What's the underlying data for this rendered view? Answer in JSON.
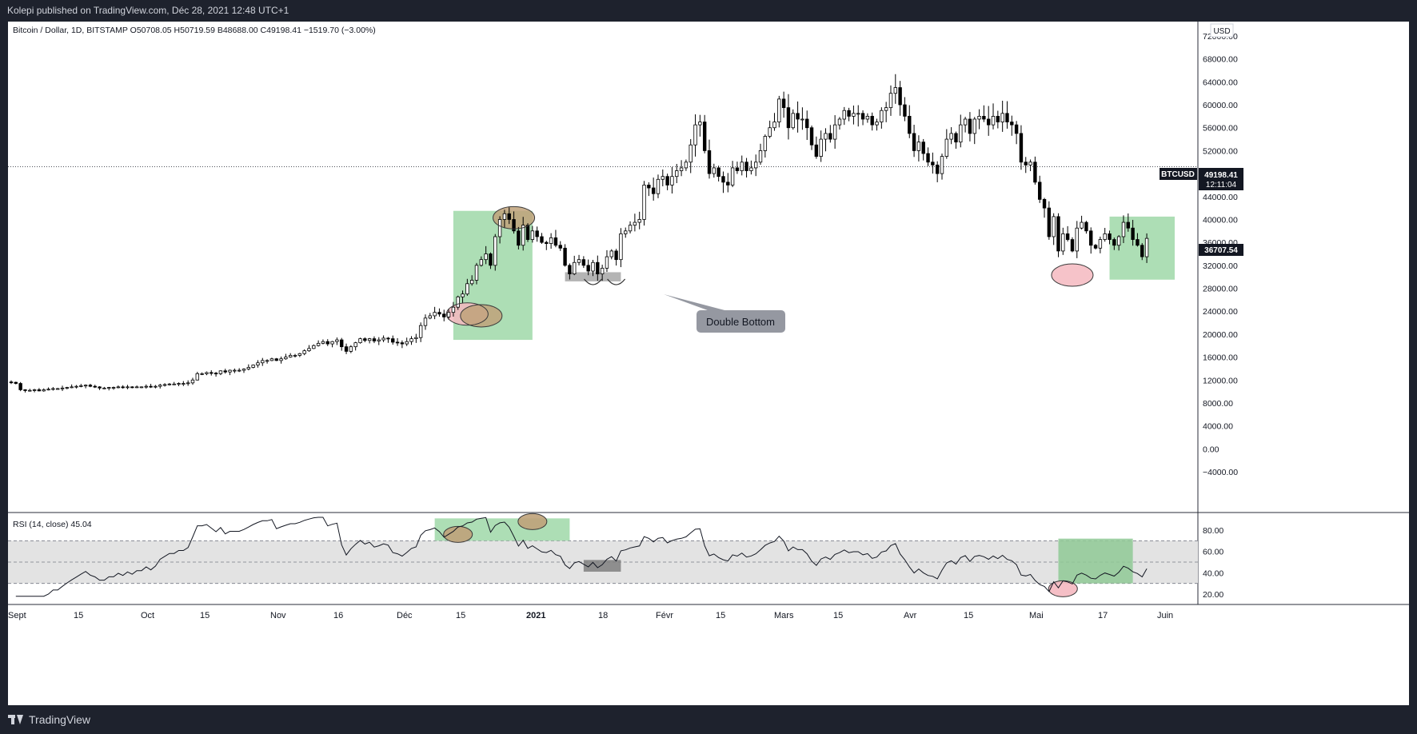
{
  "header": {
    "published": "Kolepi published on TradingView.com, Déc 28, 2021 12:48 UTC+1"
  },
  "footer": {
    "brand": "TradingView"
  },
  "colors": {
    "up": "#ffffff",
    "down": "#000000",
    "zone_green": "#9fd8a8",
    "circle_pink": "#f4b8c0",
    "circle_brown": "#bfa27a",
    "rsi_band": "#e3e3e3"
  },
  "chart_data": {
    "type": "candlestick",
    "symbol_line": "Bitcoin / Dollar, 1D, BITSTAMP  O50708.05  H50719.59  B48688.00  C49198.41  −1519.70 (−3.00%)",
    "currency": "USD",
    "price_axis_labels": [
      "72000.00",
      "68000.00",
      "64000.00",
      "60000.00",
      "56000.00",
      "52000.00",
      "48000.00",
      "44000.00",
      "40000.00",
      "36000.00",
      "32000.00",
      "28000.00",
      "24000.00",
      "20000.00",
      "16000.00",
      "12000.00",
      "8000.00",
      "4000.00",
      "0.00",
      "−4000.00"
    ],
    "ylim": [
      -6000,
      73000
    ],
    "x_axis_labels": [
      "Sept",
      "15",
      "Oct",
      "15",
      "Nov",
      "16",
      "Déc",
      "15",
      "2021",
      "18",
      "Févr",
      "15",
      "Mars",
      "15",
      "Avr",
      "15",
      "Mai",
      "17",
      "Juin"
    ],
    "last_price": {
      "label": "BTCUSD",
      "value": "49198.41",
      "countdown": "12:11:04"
    },
    "cross_price": "36707.54",
    "annotation": "Double Bottom",
    "closes": [
      11600,
      11400,
      10300,
      10200,
      10200,
      10300,
      10100,
      10300,
      10400,
      10500,
      10500,
      10600,
      10700,
      10800,
      10900,
      11000,
      11100,
      10900,
      10800,
      10600,
      10600,
      10700,
      10700,
      10800,
      10700,
      10800,
      10700,
      10800,
      10800,
      10900,
      10800,
      10900,
      11100,
      11200,
      11300,
      11300,
      11400,
      11400,
      11500,
      12000,
      13100,
      13100,
      13300,
      13200,
      13100,
      13600,
      13400,
      13700,
      13700,
      13700,
      13900,
      14200,
      14600,
      15000,
      15400,
      15400,
      15700,
      15400,
      15700,
      16000,
      16300,
      16300,
      16600,
      17100,
      17500,
      18000,
      18400,
      18700,
      18300,
      18700,
      19000,
      17800,
      17000,
      17800,
      18500,
      19200,
      18900,
      19200,
      18800,
      19000,
      19300,
      19200,
      18600,
      18500,
      18300,
      18700,
      19200,
      19400,
      21500,
      22800,
      23200,
      23800,
      23500,
      23000,
      23800,
      24700,
      26500,
      27000,
      28800,
      29400,
      32000,
      33000,
      34000,
      32000,
      37000,
      40000,
      41000,
      40000,
      38000,
      35500,
      39000,
      36500,
      38000,
      37000,
      36000,
      35800,
      36800,
      35500,
      35000,
      32000,
      30500,
      32500,
      33000,
      32000,
      31000,
      32500,
      30500,
      31500,
      33500,
      34500,
      33000,
      37500,
      38000,
      39000,
      39500,
      40000,
      46000,
      45500,
      44500,
      47000,
      47500,
      46000,
      47500,
      48500,
      49000,
      50000,
      53000,
      56500,
      57000,
      52000,
      48000,
      49000,
      47500,
      46500,
      46000,
      49000,
      48500,
      50000,
      48500,
      49000,
      50000,
      52000,
      54500,
      56000,
      57000,
      61000,
      59500,
      56000,
      58500,
      57500,
      57500,
      56000,
      53000,
      51000,
      54000,
      55000,
      54000,
      56500,
      57500,
      59000,
      58000,
      58500,
      58500,
      57500,
      58000,
      56500,
      57000,
      59000,
      59500,
      62000,
      63000,
      60000,
      58000,
      55000,
      52000,
      53500,
      51500,
      50000,
      49500,
      48000,
      51000,
      54000,
      55000,
      53500,
      56500,
      57500,
      55000,
      57500,
      58000,
      57500,
      56500,
      58000,
      57000,
      58500,
      57000,
      56500,
      55000,
      50000,
      49500,
      50000,
      46500,
      43500,
      42000,
      37000,
      40500,
      34500,
      37500,
      36500,
      34500,
      38500,
      39500,
      38000,
      35500,
      35000,
      36500,
      37500,
      36500,
      35500,
      37000,
      39500,
      38500,
      36500,
      35500,
      33500,
      36700
    ],
    "rsi": {
      "label": "RSI (14, close)",
      "value": "45.04",
      "axis_labels": [
        "80.00",
        "60.00",
        "40.00",
        "20.00"
      ],
      "ylim": [
        12,
        95
      ],
      "band": [
        30,
        70
      ],
      "midline": 50
    },
    "zones": [
      {
        "type": "box",
        "color": "green",
        "x_index": [
          95,
          112
        ],
        "price": [
          19000,
          41500
        ]
      },
      {
        "type": "box",
        "color": "green",
        "x_index": [
          236,
          250
        ],
        "price": [
          29500,
          40500
        ]
      },
      {
        "type": "box",
        "color": "gray",
        "x_index": [
          119,
          131
        ],
        "price": [
          29200,
          30800
        ]
      },
      {
        "type": "ellipse",
        "color": "pink",
        "x_index": 98,
        "price": 23500
      },
      {
        "type": "ellipse",
        "color": "brown",
        "x_index": 101,
        "price": 23200
      },
      {
        "type": "ellipse",
        "color": "brown",
        "x_index": 108,
        "price": 40300
      },
      {
        "type": "ellipse",
        "color": "pink",
        "x_index": 228,
        "price": 30300
      }
    ],
    "rsi_zones": [
      {
        "type": "box",
        "color": "green",
        "x_index": [
          91,
          120
        ],
        "rsi": [
          70,
          91
        ]
      },
      {
        "type": "box",
        "color": "darkgreen",
        "x_index": [
          225,
          241
        ],
        "rsi": [
          30,
          72
        ]
      },
      {
        "type": "box",
        "color": "gray",
        "x_index": [
          123,
          131
        ],
        "rsi": [
          41,
          52
        ]
      },
      {
        "type": "ellipse",
        "color": "brown",
        "x_index": 96,
        "rsi": 76
      },
      {
        "type": "ellipse",
        "color": "brown",
        "x_index": 112,
        "rsi": 88
      },
      {
        "type": "ellipse",
        "color": "pink",
        "x_index": 226,
        "rsi": 25
      }
    ]
  }
}
